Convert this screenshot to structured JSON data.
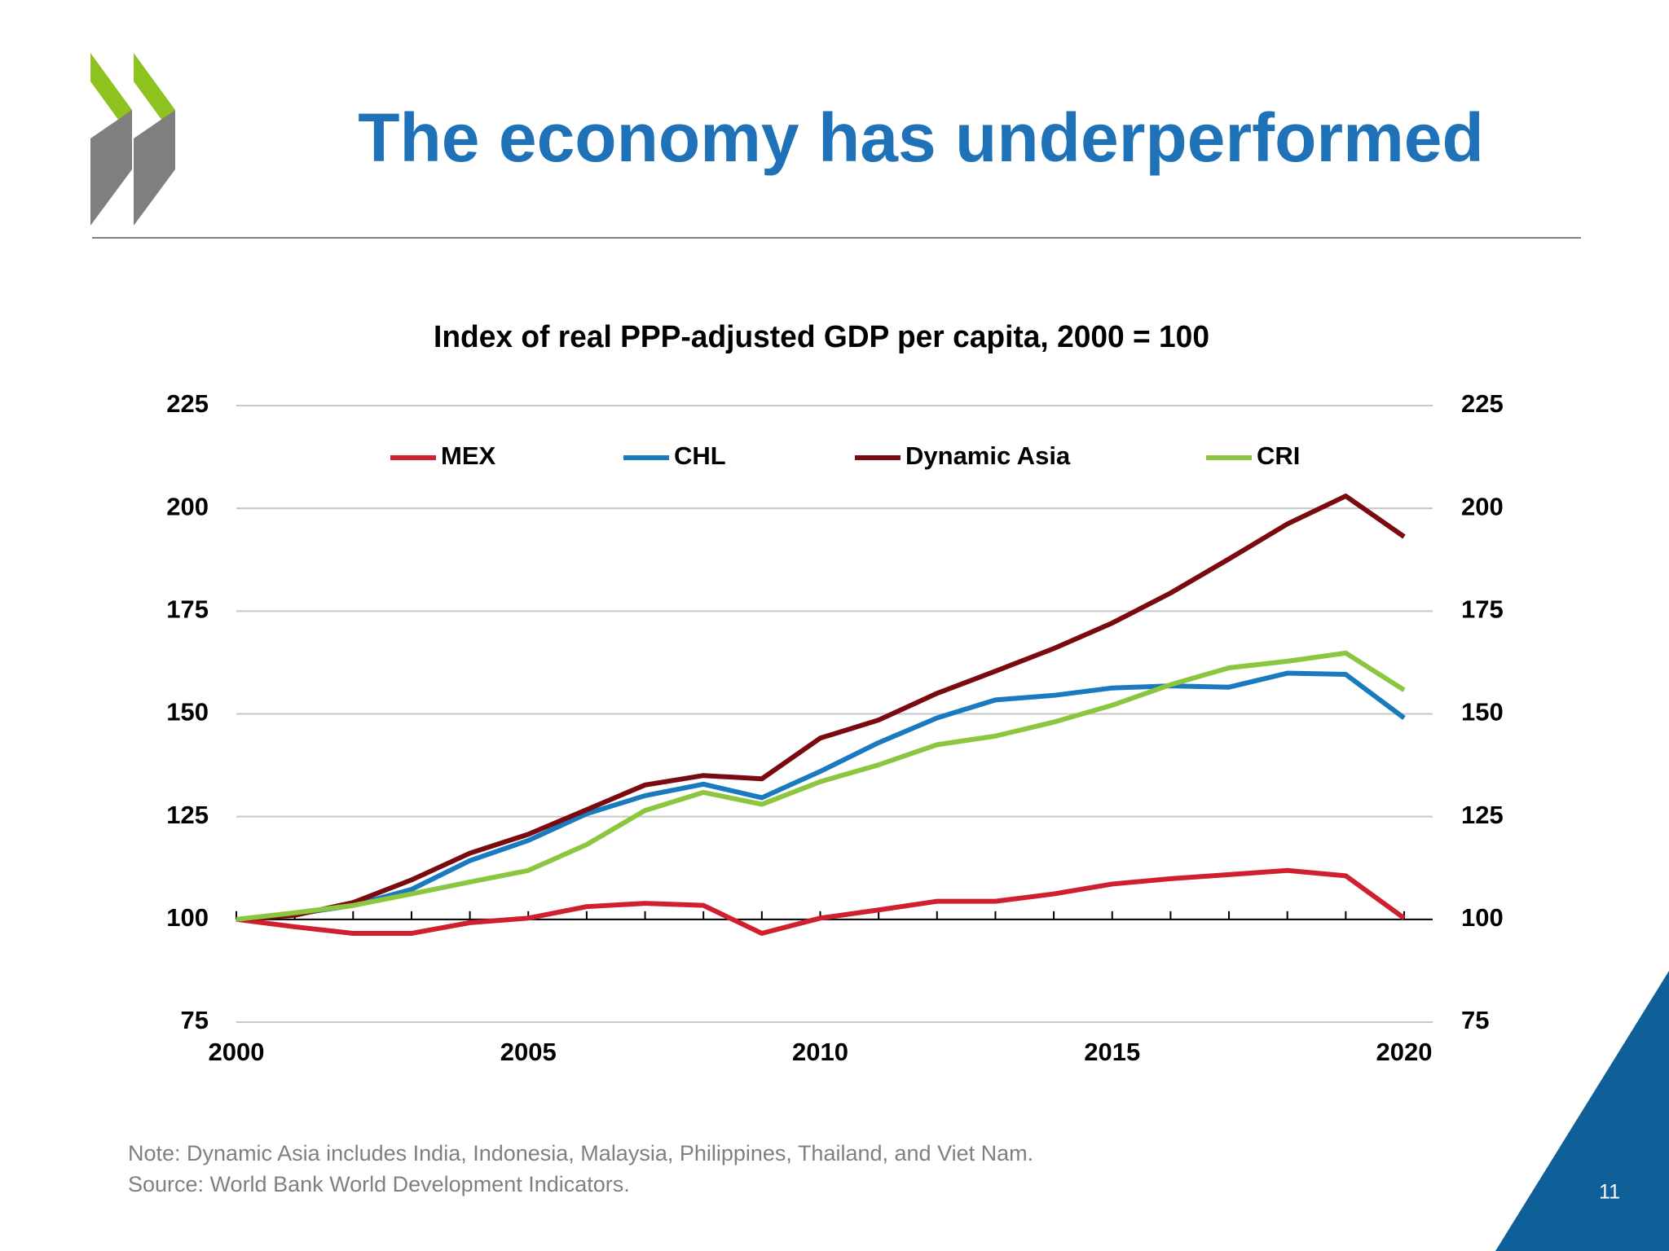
{
  "slide_title": "The economy has underperformed",
  "notes": [
    "Note: Dynamic Asia includes India, Indonesia, Malaysia, Philippines, Thailand, and Viet Nam.",
    "Source: World Bank World Development Indicators."
  ],
  "page_number": "11",
  "chart_data": {
    "type": "line",
    "title": "Index of real PPP-adjusted GDP per capita, 2000 = 100",
    "x": [
      2000,
      2001,
      2002,
      2003,
      2004,
      2005,
      2006,
      2007,
      2008,
      2009,
      2010,
      2011,
      2012,
      2013,
      2014,
      2015,
      2016,
      2017,
      2018,
      2019,
      2020
    ],
    "series": [
      {
        "name": "MEX",
        "color": "#d0202e",
        "values": [
          100,
          98.2,
          96.6,
          96.6,
          99.2,
          100.3,
          103.1,
          103.9,
          103.4,
          96.6,
          100.3,
          102.3,
          104.4,
          104.4,
          106.2,
          108.6,
          109.9,
          110.9,
          111.9,
          110.6,
          100.3
        ]
      },
      {
        "name": "CHL",
        "color": "#1a7abf",
        "values": [
          100,
          101.3,
          103.4,
          107.3,
          114.3,
          119.2,
          125.7,
          130.1,
          132.9,
          129.6,
          136,
          143,
          149,
          153.4,
          154.5,
          156.3,
          156.8,
          156.5,
          159.9,
          159.6,
          149
        ]
      },
      {
        "name": "Dynamic Asia",
        "color": "#7a0a10",
        "values": [
          100,
          101,
          104.1,
          109.6,
          116.1,
          120.7,
          126.7,
          132.7,
          135,
          134.2,
          144.1,
          148.5,
          155,
          160.4,
          165.9,
          172.1,
          179.4,
          187.7,
          196.2,
          203,
          193.1
        ]
      },
      {
        "name": "CRI",
        "color": "#8cc63f",
        "values": [
          100,
          101.6,
          103.4,
          106.2,
          109.1,
          111.9,
          118.2,
          126.5,
          130.9,
          128,
          133.5,
          137.6,
          142.5,
          144.6,
          148,
          152.1,
          157.1,
          161.2,
          162.8,
          164.8,
          155.8
        ]
      }
    ],
    "xlim": [
      2000,
      2020
    ],
    "xticks": [
      2000,
      2005,
      2010,
      2015,
      2020
    ],
    "ylim": [
      75,
      225
    ],
    "yticks": [
      75,
      100,
      125,
      150,
      175,
      200,
      225
    ],
    "y2lim": [
      75,
      225
    ],
    "y2ticks": [
      75,
      100,
      125,
      150,
      175,
      200,
      225
    ],
    "x_axis_crosses": 100,
    "grid": true,
    "legend": "top"
  }
}
